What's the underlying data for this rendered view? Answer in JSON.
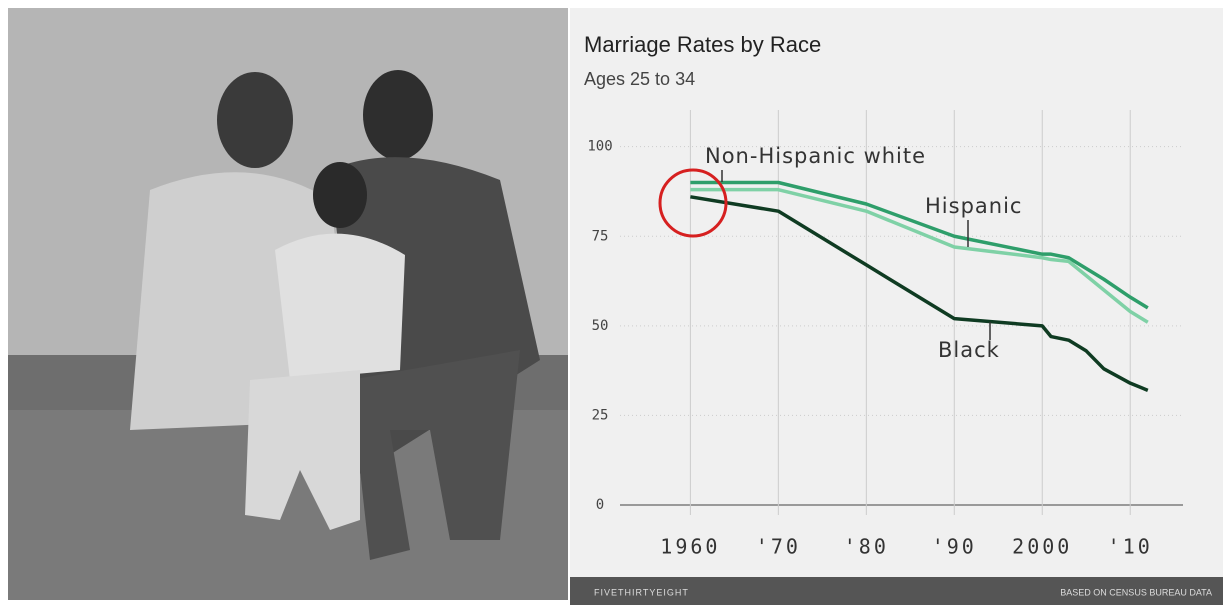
{
  "chart_data": {
    "type": "line",
    "title": "Marriage Rates by Race",
    "subtitle": "Ages 25 to 34",
    "x": [
      1960,
      1970,
      1980,
      1990,
      2000,
      2001,
      2003,
      2005,
      2007,
      2010,
      2012
    ],
    "series": [
      {
        "name": "Non-Hispanic white",
        "color": "#2e9e6a",
        "values": [
          90,
          90,
          84,
          75,
          70,
          70,
          69,
          66,
          63,
          58,
          55
        ]
      },
      {
        "name": "Hispanic",
        "color": "#7fd1a6",
        "values": [
          88,
          88,
          82,
          72,
          69,
          68.5,
          68,
          64,
          60,
          54,
          51
        ]
      },
      {
        "name": "Black",
        "color": "#0f3b22",
        "values": [
          86,
          82,
          67,
          52,
          50,
          47,
          46,
          43,
          38,
          34,
          32
        ]
      }
    ],
    "xlim": [
      1952,
      2016
    ],
    "ylim": [
      0,
      108
    ],
    "xticks": [
      1960,
      {
        "value": 1970,
        "label": "'70"
      },
      {
        "value": 1980,
        "label": "'80"
      },
      {
        "value": 1990,
        "label": "'90"
      },
      2000,
      {
        "value": 2010,
        "label": "'10"
      }
    ],
    "yticks": [
      0,
      25,
      50,
      75,
      100
    ],
    "grid": true,
    "logo": "FIVETHIRTYEIGHT",
    "source": "BASED ON CENSUS BUREAU DATA"
  }
}
